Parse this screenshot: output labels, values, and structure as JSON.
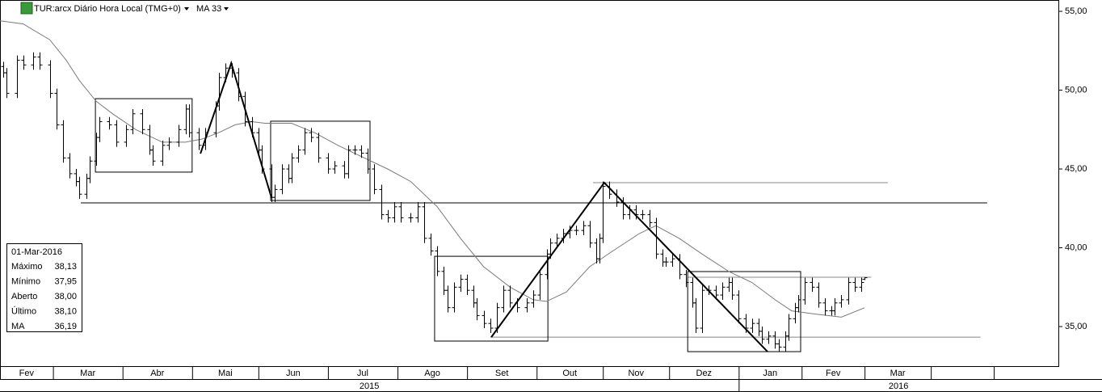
{
  "chart_data": {
    "type": "ohlc",
    "title": "TUR:arcx Diário Hora Local (TMG+0)",
    "color": "#000000",
    "xlim": [
      0,
      319.5
    ],
    "ylim": [
      32.49,
      55.72
    ],
    "yticks": [
      {
        "value": 35,
        "label": "35,00"
      },
      {
        "value": 40,
        "label": "40,00"
      },
      {
        "value": 45,
        "label": "45,00"
      },
      {
        "value": 50,
        "label": "50,00"
      },
      {
        "value": 55,
        "label": "55,00"
      }
    ],
    "xticks": [
      {
        "value": 0,
        "label": "Fev"
      },
      {
        "value": 16,
        "label": "Mar"
      },
      {
        "value": 37,
        "label": "Abr"
      },
      {
        "value": 58,
        "label": "Mai"
      },
      {
        "value": 78,
        "label": "Jun"
      },
      {
        "value": 99,
        "label": "Jul"
      },
      {
        "value": 120,
        "label": "Ago"
      },
      {
        "value": 141,
        "label": "Set"
      },
      {
        "value": 162,
        "label": "Out"
      },
      {
        "value": 182,
        "label": "Nov"
      },
      {
        "value": 202,
        "label": "Dez"
      },
      {
        "value": 223,
        "label": "Jan"
      },
      {
        "value": 242,
        "label": "Fev"
      },
      {
        "value": 261,
        "label": "Mar"
      },
      {
        "value": 281
      },
      {
        "value": 300
      }
    ],
    "years": [
      {
        "value": 0,
        "label": "2015"
      },
      {
        "value": 223,
        "label": "2016"
      }
    ],
    "x": [
      1,
      2,
      5,
      7,
      10,
      12,
      15,
      17,
      19,
      21,
      23,
      24,
      26,
      27,
      29,
      30,
      33,
      35,
      38,
      40,
      43,
      45,
      46,
      49,
      51,
      54,
      56,
      57,
      60,
      62,
      65,
      66,
      68,
      70,
      72,
      74,
      76,
      78,
      79,
      82,
      83,
      85,
      87,
      88,
      90,
      92,
      94,
      96,
      99,
      101,
      104,
      105,
      107,
      109,
      111,
      113,
      115,
      117,
      119,
      121,
      124,
      126,
      128,
      130,
      132,
      134,
      135,
      137,
      139,
      141,
      143,
      144,
      146,
      148,
      150,
      152,
      154,
      156,
      159,
      161,
      163,
      165,
      166,
      168,
      170,
      172,
      174,
      176,
      178,
      180,
      181,
      182,
      184,
      186,
      188,
      190,
      192,
      194,
      196,
      198,
      200,
      201,
      203,
      205,
      207,
      209,
      210,
      212,
      214,
      216,
      218,
      220,
      221,
      223,
      225,
      227,
      229,
      230,
      232,
      234,
      235,
      237,
      238,
      240,
      241,
      243,
      245,
      247,
      249,
      251,
      252,
      254,
      256,
      258,
      260,
      261
    ],
    "ohlc": [
      [
        51.5,
        51.8,
        50.8,
        51.1
      ],
      [
        51.1,
        51.4,
        49.5,
        49.8
      ],
      [
        49.8,
        52.2,
        49.5,
        51.9
      ],
      [
        51.9,
        52.2,
        51.3,
        51.6
      ],
      [
        51.6,
        52.4,
        51.3,
        52.1
      ],
      [
        52.1,
        52.4,
        51.3,
        51.6
      ],
      [
        51.6,
        51.9,
        49.5,
        49.8
      ],
      [
        49.8,
        50.1,
        47.5,
        47.8
      ],
      [
        47.8,
        48.1,
        45.4,
        45.7
      ],
      [
        45.7,
        46,
        44.4,
        44.7
      ],
      [
        44.7,
        45,
        43.9,
        44.2
      ],
      [
        44.2,
        44.5,
        43.1,
        43.4
      ],
      [
        43.4,
        44.7,
        43.1,
        44.4
      ],
      [
        44.4,
        45.8,
        44.1,
        45.5
      ],
      [
        45.5,
        47.3,
        45.2,
        47
      ],
      [
        47,
        48.3,
        46.7,
        48
      ],
      [
        48,
        48.3,
        47.5,
        47.8
      ],
      [
        47.8,
        48.1,
        46.4,
        46.7
      ],
      [
        46.7,
        47.8,
        46.4,
        47.5
      ],
      [
        47.5,
        48.8,
        47.2,
        48.5
      ],
      [
        48.5,
        48.8,
        47.2,
        47.5
      ],
      [
        47.5,
        47.8,
        45.9,
        46.2
      ],
      [
        46.2,
        46.5,
        45.2,
        45.5
      ],
      [
        45.5,
        46.8,
        45.2,
        46.5
      ],
      [
        46.5,
        47,
        46.2,
        46.7
      ],
      [
        46.7,
        47.8,
        46.4,
        47.5
      ],
      [
        47.5,
        49.1,
        47.2,
        48.8
      ],
      [
        48.8,
        49.1,
        47,
        47.3
      ],
      [
        47.3,
        47.6,
        46.2,
        46.5
      ],
      [
        46.5,
        47.6,
        46.2,
        47.3
      ],
      [
        47.3,
        49.3,
        47,
        49
      ],
      [
        49,
        51.1,
        48.7,
        50.8
      ],
      [
        50.8,
        51.7,
        50.5,
        51.4
      ],
      [
        51.4,
        51.7,
        50.8,
        51.1
      ],
      [
        51.1,
        51.4,
        49.3,
        49.6
      ],
      [
        49.6,
        49.9,
        47.7,
        48
      ],
      [
        48,
        48.3,
        47,
        47.3
      ],
      [
        47.3,
        47.6,
        45.9,
        46.2
      ],
      [
        46.2,
        46.5,
        44.7,
        45
      ],
      [
        45,
        45.3,
        42.9,
        43.2
      ],
      [
        43.2,
        44,
        42.9,
        43.7
      ],
      [
        43.7,
        45.3,
        43.4,
        45
      ],
      [
        45,
        45.3,
        44.1,
        44.4
      ],
      [
        44.4,
        46,
        44.1,
        45.7
      ],
      [
        45.7,
        46.5,
        45.4,
        46.2
      ],
      [
        46.2,
        47.6,
        45.9,
        47.3
      ],
      [
        47.3,
        47.6,
        46.7,
        47
      ],
      [
        47,
        47.3,
        45.4,
        45.7
      ],
      [
        45.7,
        46,
        44.7,
        45
      ],
      [
        45,
        45.5,
        44.7,
        45.2
      ],
      [
        45.2,
        45.5,
        44.4,
        44.7
      ],
      [
        44.7,
        46.5,
        44.4,
        46.2
      ],
      [
        46.2,
        46.5,
        45.9,
        46.2
      ],
      [
        46.2,
        46.5,
        45.7,
        46
      ],
      [
        46,
        46.3,
        44.7,
        45
      ],
      [
        45,
        45.3,
        43.4,
        43.7
      ],
      [
        43.7,
        44,
        41.8,
        42.1
      ],
      [
        42.1,
        42.4,
        41.6,
        41.9
      ],
      [
        41.9,
        42.9,
        41.6,
        42.6
      ],
      [
        42.6,
        42.9,
        41.6,
        41.9
      ],
      [
        41.9,
        42.2,
        41.6,
        41.9
      ],
      [
        41.9,
        42.9,
        41.6,
        42.6
      ],
      [
        42.6,
        42.9,
        40.3,
        40.6
      ],
      [
        40.6,
        40.9,
        39.5,
        39.8
      ],
      [
        39.8,
        40.1,
        38.2,
        38.5
      ],
      [
        38.5,
        38.8,
        37,
        37.3
      ],
      [
        37.3,
        37.6,
        35.9,
        36.2
      ],
      [
        36.2,
        37.8,
        35.9,
        37.5
      ],
      [
        37.5,
        38.3,
        37.2,
        38
      ],
      [
        38,
        38.3,
        37,
        37.3
      ],
      [
        37.3,
        37.6,
        36.2,
        36.5
      ],
      [
        36.5,
        36.8,
        35.4,
        35.7
      ],
      [
        35.7,
        36,
        34.9,
        35.2
      ],
      [
        35.2,
        35.5,
        34.6,
        34.9
      ],
      [
        34.9,
        36.5,
        34.6,
        36.2
      ],
      [
        36.2,
        37.6,
        35.9,
        37.3
      ],
      [
        37.3,
        37.6,
        36.2,
        36.5
      ],
      [
        36.5,
        36.8,
        35.9,
        36.2
      ],
      [
        36.2,
        36.8,
        35.9,
        36.5
      ],
      [
        36.5,
        37.3,
        36.2,
        37
      ],
      [
        37,
        38.6,
        36.7,
        38.3
      ],
      [
        38.3,
        39.9,
        38,
        39.6
      ],
      [
        39.6,
        40.6,
        39.3,
        40.3
      ],
      [
        40.3,
        40.9,
        40,
        40.6
      ],
      [
        40.6,
        41.2,
        40.3,
        40.9
      ],
      [
        40.9,
        41.4,
        40.6,
        41.1
      ],
      [
        41.1,
        41.4,
        40.8,
        41.1
      ],
      [
        41.1,
        41.7,
        40.8,
        41.4
      ],
      [
        41.4,
        41.7,
        40,
        40.3
      ],
      [
        40.3,
        40.6,
        39,
        39.3
      ],
      [
        39.3,
        40.9,
        39,
        40.6
      ],
      [
        40.6,
        44.2,
        40.3,
        43.9
      ],
      [
        43.9,
        44.2,
        43.1,
        43.4
      ],
      [
        43.4,
        43.7,
        42.6,
        42.9
      ],
      [
        42.9,
        43.2,
        41.8,
        42.1
      ],
      [
        42.1,
        42.7,
        41.8,
        42.4
      ],
      [
        42.4,
        42.7,
        41.8,
        42.1
      ],
      [
        42.1,
        42.4,
        41.8,
        42.1
      ],
      [
        42.1,
        42.4,
        41.3,
        41.6
      ],
      [
        41.6,
        41.9,
        39.3,
        39.6
      ],
      [
        39.6,
        39.9,
        38.8,
        39.1
      ],
      [
        39.1,
        39.4,
        38.8,
        39.1
      ],
      [
        39.1,
        39.6,
        38.8,
        39.3
      ],
      [
        39.3,
        39.6,
        38,
        38.3
      ],
      [
        38.3,
        38.6,
        37.5,
        37.8
      ],
      [
        37.8,
        38.1,
        36.2,
        36.5
      ],
      [
        36.5,
        36.8,
        34.6,
        34.9
      ],
      [
        34.9,
        37.6,
        34.6,
        37.3
      ],
      [
        37.3,
        37.6,
        37,
        37.3
      ],
      [
        37.3,
        37.6,
        36.7,
        37
      ],
      [
        37,
        37.8,
        36.7,
        37.5
      ],
      [
        37.5,
        38.1,
        37.2,
        37.8
      ],
      [
        37.8,
        38.1,
        36.7,
        37
      ],
      [
        37,
        37.3,
        35.2,
        35.5
      ],
      [
        35.5,
        35.8,
        34.6,
        34.9
      ],
      [
        34.9,
        35.5,
        34.6,
        35.2
      ],
      [
        35.2,
        35.5,
        34.4,
        34.7
      ],
      [
        34.7,
        35,
        33.9,
        34.2
      ],
      [
        34.2,
        34.7,
        33.9,
        34.4
      ],
      [
        34.4,
        34.7,
        33.6,
        33.9
      ],
      [
        33.9,
        34.2,
        33.4,
        33.7
      ],
      [
        33.7,
        34.7,
        33.4,
        34.4
      ],
      [
        34.4,
        35.8,
        34.1,
        35.5
      ],
      [
        35.5,
        36.5,
        35.2,
        36.2
      ],
      [
        36.2,
        37,
        35.9,
        36.7
      ],
      [
        36.7,
        38.1,
        36.4,
        37.8
      ],
      [
        37.8,
        38.1,
        37.2,
        37.5
      ],
      [
        37.5,
        37.8,
        36.2,
        36.5
      ],
      [
        36.5,
        36.8,
        35.7,
        36
      ],
      [
        36,
        36.3,
        35.7,
        36
      ],
      [
        36,
        36.8,
        35.7,
        36.5
      ],
      [
        36.5,
        37,
        36.2,
        36.7
      ],
      [
        36.7,
        38.1,
        36.4,
        37.8
      ],
      [
        37.8,
        38.1,
        37.2,
        37.5
      ],
      [
        37.5,
        38.1,
        37.2,
        37.8
      ],
      [
        38,
        38.13,
        37.95,
        38.1
      ]
    ],
    "ma": {
      "name": "MA 33",
      "color": "#7a7a7a",
      "x": [
        0,
        7,
        15,
        20,
        24,
        29,
        34,
        41,
        49,
        56,
        61,
        66,
        71,
        76,
        80,
        88,
        95,
        102,
        110,
        117,
        124,
        132,
        139,
        146,
        154,
        161,
        165,
        171,
        178,
        185,
        193,
        198,
        205,
        212,
        220,
        227,
        234,
        239,
        246,
        254,
        261
      ],
      "values": [
        54.4,
        54.2,
        53.2,
        51.9,
        50.6,
        49.3,
        48.5,
        47.5,
        46.7,
        46.7,
        46.9,
        47.3,
        47.8,
        48,
        47.9,
        47.9,
        47.3,
        46.5,
        45.7,
        45,
        44.2,
        42.6,
        40.6,
        38.8,
        37.5,
        36.7,
        36.6,
        37.2,
        38.8,
        39.8,
        40.9,
        41.4,
        40.6,
        39.6,
        38.5,
        37.8,
        36.7,
        36,
        35.8,
        35.6,
        36.19
      ]
    },
    "boxes": [
      [
        28.8,
        58,
        49.46,
        44.8
      ],
      [
        81.7,
        111.7,
        48.03,
        43
      ],
      [
        131.2,
        165.4,
        39.46,
        34.08
      ],
      [
        207.6,
        241.7,
        38.49,
        33.41
      ]
    ],
    "hlines": [
      {
        "x": [
          24.4,
          298
        ],
        "y": 42.85,
        "color": "#000000"
      },
      {
        "x": [
          179,
          268
        ],
        "y": 44.13,
        "color": "#888888"
      },
      {
        "x": [
          148,
          296
        ],
        "y": 34.33,
        "color": "#888888"
      },
      {
        "x": [
          207.6,
          263
        ],
        "y": 38.13,
        "color": "#888888"
      }
    ],
    "trend_lines": [
      {
        "x": [
          60.5,
          69.8,
          82
        ],
        "y": [
          45.97,
          51.72,
          43.15
        ]
      },
      {
        "x": [
          148.3,
          182.4,
          231.7
        ],
        "y": [
          34.33,
          44.13,
          33.41
        ]
      }
    ],
    "info": {
      "date": "01-Mar-2016",
      "rows": [
        [
          "Máximo",
          "38,13"
        ],
        [
          "Mínimo",
          "37,95"
        ],
        [
          "Aberto",
          "38,00"
        ],
        [
          "Último",
          "38,10"
        ],
        [
          "MA",
          "36,19"
        ]
      ]
    }
  }
}
